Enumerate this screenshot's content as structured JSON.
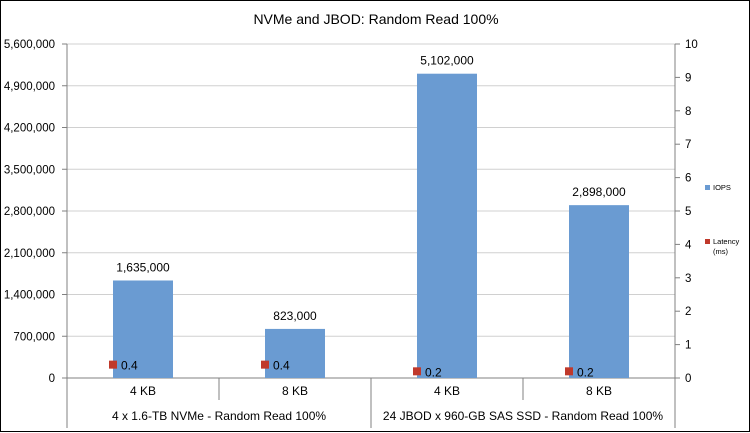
{
  "chart_data": {
    "type": "bar",
    "title": "NVMe and JBOD: Random Read 100%",
    "groups": [
      "4 x 1.6-TB NVMe - Random Read 100%",
      "24 JBOD x 960-GB SAS SSD - Random Read 100%"
    ],
    "categories": [
      "4 KB",
      "8 KB",
      "4 KB",
      "8 KB"
    ],
    "series": [
      {
        "name": "IOPS",
        "axis": "left",
        "color": "#6a9bd2",
        "values": [
          1635000,
          823000,
          5102000,
          2898000
        ],
        "labels": [
          "1,635,000",
          "823,000",
          "5,102,000",
          "2,898,000"
        ]
      },
      {
        "name": "Latency (ms)",
        "axis": "right",
        "color": "#c0392b",
        "values": [
          0.4,
          0.4,
          0.2,
          0.2
        ],
        "labels": [
          "0.4",
          "0.4",
          "0.2",
          "0.2"
        ]
      }
    ],
    "y_left": {
      "range": [
        0,
        5600000
      ],
      "ticks": [
        0,
        700000,
        1400000,
        2100000,
        2800000,
        3500000,
        4200000,
        4900000,
        5600000
      ],
      "tick_labels": [
        "0",
        "700,000",
        "1,400,000",
        "2,100,000",
        "2,800,000",
        "3,500,000",
        "4,200,000",
        "4,900,000",
        "5,600,000"
      ]
    },
    "y_right": {
      "range": [
        0,
        10
      ],
      "ticks": [
        0,
        1,
        2,
        3,
        4,
        5,
        6,
        7,
        8,
        9,
        10
      ],
      "tick_labels": [
        "0",
        "1",
        "2",
        "3",
        "4",
        "5",
        "6",
        "7",
        "8",
        "9",
        "10"
      ]
    },
    "grid": true,
    "legend": {
      "placement": "right",
      "entries": [
        {
          "label": "IOPS",
          "color": "#6a9bd2"
        },
        {
          "label_lines": [
            "Latency",
            "(ms)"
          ],
          "color": "#c0392b"
        }
      ]
    }
  }
}
